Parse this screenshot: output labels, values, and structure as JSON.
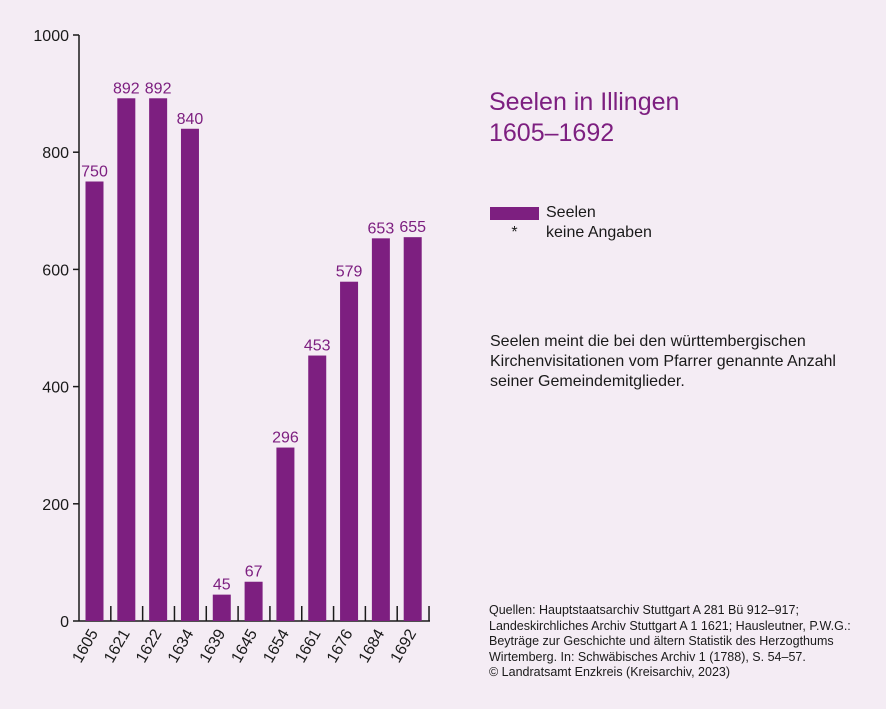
{
  "title": {
    "line1": "Seelen in Illingen",
    "line2": "1605–1692"
  },
  "legend": {
    "series_label": "Seelen",
    "star_symbol": "*",
    "star_label": "keine Angaben"
  },
  "note": "Seelen meint die bei den württembergischen Kirchenvisitationen vom Pfarrer genannte Anzahl seiner Gemeindemitglieder.",
  "sources": [
    "Quellen: Hauptstaatsarchiv Stuttgart A 281 Bü 912–917;",
    "Landeskirchliches Archiv Stuttgart A 1 1621; Hausleutner, P.W.G.:",
    "Beyträge zur Geschichte und ältern Statistik des Herzogthums",
    "Wirtemberg. In: Schwäbisches Archiv 1 (1788), S. 54–57.",
    "© Landratsamt Enzkreis (Kreisarchiv, 2023)"
  ],
  "colors": {
    "bar": "#7d1f80",
    "background": "#f4ecf4",
    "axis": "#1a1a1a"
  },
  "chart_data": {
    "type": "bar",
    "categories": [
      "1605",
      "1621",
      "1622",
      "1634",
      "1639",
      "1645",
      "1654",
      "1661",
      "1676",
      "1684",
      "1692"
    ],
    "series": [
      {
        "name": "Seelen",
        "values": [
          750,
          892,
          892,
          840,
          45,
          67,
          296,
          453,
          579,
          653,
          655
        ],
        "labels": [
          "750",
          "892",
          "892",
          "840",
          "45",
          "67",
          "296",
          "453",
          "579",
          "653",
          "655"
        ]
      }
    ],
    "ylim": [
      0,
      1000
    ],
    "yticks": [
      0,
      200,
      400,
      600,
      800,
      1000
    ],
    "ytick_labels": [
      "0",
      "200",
      "400",
      "600",
      "800",
      "1000"
    ],
    "grid": false,
    "legend_position": "right"
  }
}
